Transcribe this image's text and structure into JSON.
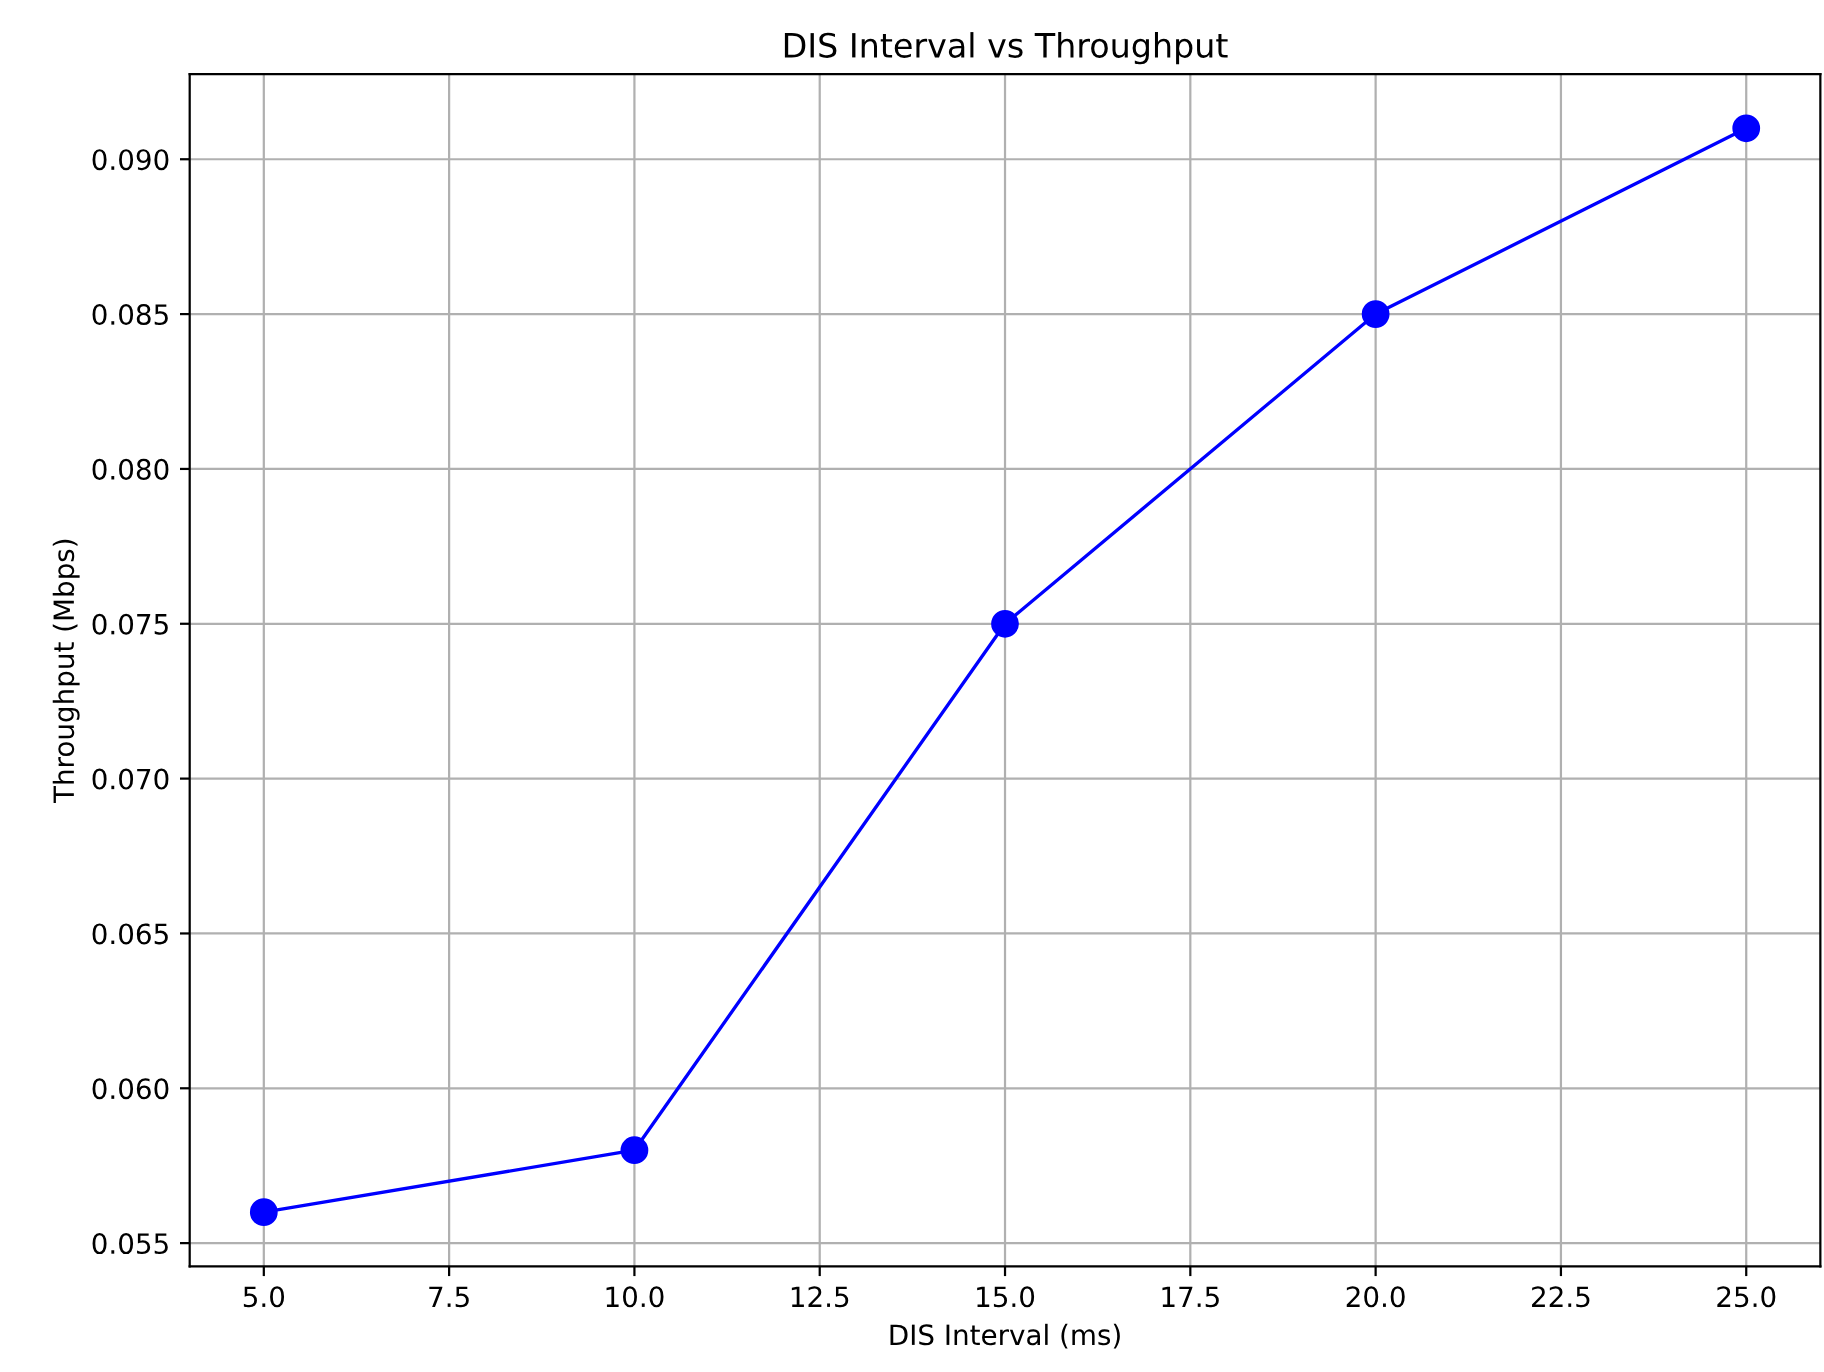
{
  "chart_data": {
    "type": "line",
    "title": "DIS Interval vs Throughput",
    "xlabel": "DIS Interval (ms)",
    "ylabel": "Throughput (Mbps)",
    "x": [
      5,
      10,
      15,
      20,
      25
    ],
    "series": [
      {
        "color": "#0000ff",
        "values": [
          0.056,
          0.058,
          0.075,
          0.085,
          0.091
        ]
      }
    ],
    "xlim": [
      4,
      26
    ],
    "xticks": [
      {
        "value": 5,
        "label": "5.0"
      },
      {
        "value": 7.5,
        "label": "7.5"
      },
      {
        "value": 10,
        "label": "10.0"
      },
      {
        "value": 12.5,
        "label": "12.5"
      },
      {
        "value": 15,
        "label": "15.0"
      },
      {
        "value": 17.5,
        "label": "17.5"
      },
      {
        "value": 20,
        "label": "20.0"
      },
      {
        "value": 22.5,
        "label": "22.5"
      },
      {
        "value": 25,
        "label": "25.0"
      }
    ],
    "ylim": [
      0.05425,
      0.09275
    ],
    "yticks": [
      {
        "value": 0.055,
        "label": "0.055"
      },
      {
        "value": 0.06,
        "label": "0.060"
      },
      {
        "value": 0.065,
        "label": "0.065"
      },
      {
        "value": 0.07,
        "label": "0.070"
      },
      {
        "value": 0.075,
        "label": "0.075"
      },
      {
        "value": 0.08,
        "label": "0.080"
      },
      {
        "value": 0.085,
        "label": "0.085"
      },
      {
        "value": 0.09,
        "label": "0.090"
      }
    ],
    "grid": true,
    "marker": "circle",
    "line_style": "solid"
  }
}
